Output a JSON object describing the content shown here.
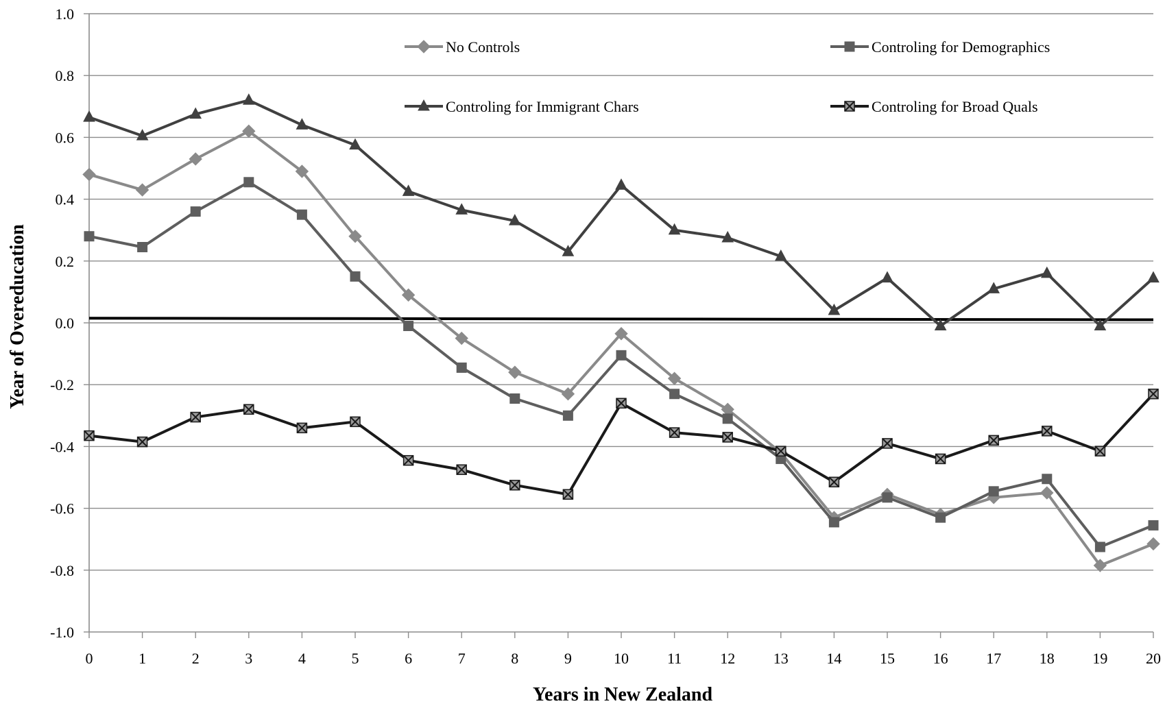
{
  "chart_data": {
    "type": "line",
    "title": "",
    "xlabel": "Years in New Zealand",
    "ylabel": "Year of Overeducation",
    "x": [
      0,
      1,
      2,
      3,
      4,
      5,
      6,
      7,
      8,
      9,
      10,
      11,
      12,
      13,
      14,
      15,
      16,
      17,
      18,
      19,
      20
    ],
    "xlim": [
      0,
      20
    ],
    "ylim": [
      -1.0,
      1.0
    ],
    "yticks": [
      "1.0",
      "0.8",
      "0.6",
      "0.4",
      "0.2",
      "0.0",
      "-0.2",
      "-0.4",
      "-0.6",
      "-0.8",
      "-1.0"
    ],
    "ytick_values": [
      1.0,
      0.8,
      0.6,
      0.4,
      0.2,
      0.0,
      -0.2,
      -0.4,
      -0.6,
      -0.8,
      -1.0
    ],
    "grid": true,
    "legend_position": "top",
    "reference_line": {
      "y_start": 0.015,
      "y_end": 0.01,
      "color": "#000000"
    },
    "series": [
      {
        "name": "No Controls",
        "marker": "diamond",
        "color": "#8a8a8a",
        "values": [
          0.48,
          0.43,
          0.53,
          0.62,
          0.49,
          0.28,
          0.09,
          -0.05,
          -0.16,
          -0.23,
          -0.035,
          -0.18,
          -0.28,
          -0.42,
          -0.63,
          -0.555,
          -0.62,
          -0.565,
          -0.55,
          -0.785,
          -0.715
        ]
      },
      {
        "name": "Controling for Demographics",
        "marker": "square",
        "color": "#5e5e5e",
        "values": [
          0.28,
          0.245,
          0.36,
          0.455,
          0.35,
          0.15,
          -0.01,
          -0.145,
          -0.245,
          -0.3,
          -0.105,
          -0.23,
          -0.31,
          -0.44,
          -0.645,
          -0.565,
          -0.63,
          -0.545,
          -0.505,
          -0.725,
          -0.655
        ]
      },
      {
        "name": "Controling for Immigrant Chars",
        "marker": "triangle",
        "color": "#404040",
        "values": [
          0.665,
          0.605,
          0.675,
          0.72,
          0.64,
          0.575,
          0.425,
          0.365,
          0.33,
          0.23,
          0.445,
          0.3,
          0.275,
          0.215,
          0.04,
          0.145,
          -0.01,
          0.11,
          0.16,
          -0.01,
          0.145
        ]
      },
      {
        "name": "Controling for Broad Quals",
        "marker": "star-square",
        "color": "#1a1a1a",
        "values": [
          -0.365,
          -0.385,
          -0.305,
          -0.28,
          -0.34,
          -0.32,
          -0.445,
          -0.475,
          -0.525,
          -0.555,
          -0.26,
          -0.355,
          -0.37,
          -0.415,
          -0.515,
          -0.39,
          -0.44,
          -0.38,
          -0.35,
          -0.415,
          -0.23
        ]
      }
    ]
  }
}
